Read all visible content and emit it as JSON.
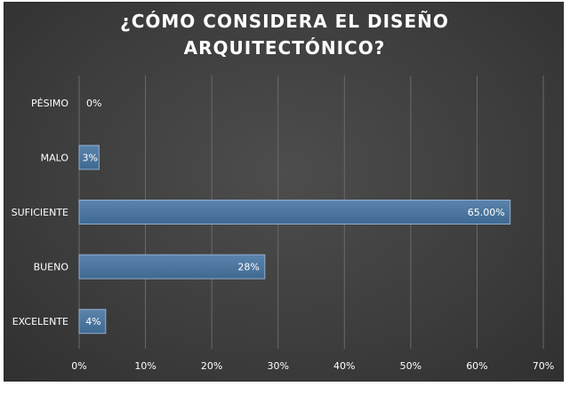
{
  "chart_data": {
    "type": "bar",
    "orientation": "horizontal",
    "title": "¿CÓMO CONSIDERA EL DISEÑO\nARQUITECTÓNICO?",
    "categories": [
      "PÉSIMO",
      "MALO",
      "SUFICIENTE",
      "BUENO",
      "EXCELENTE"
    ],
    "values": [
      0,
      3,
      65,
      28,
      4
    ],
    "value_labels": [
      "0%",
      "3%",
      "65.00%",
      "28%",
      "4%"
    ],
    "xlim": [
      0,
      70
    ],
    "x_ticks": [
      0,
      10,
      20,
      30,
      40,
      50,
      60,
      70
    ],
    "x_tick_labels": [
      "0%",
      "10%",
      "20%",
      "30%",
      "40%",
      "50%",
      "60%",
      "70%"
    ],
    "xlabel": "",
    "ylabel": "",
    "grid": "vertical",
    "legend": "none",
    "colors": {
      "bar_fill": "#3f6990",
      "bar_highlight": "#5b84ad",
      "bar_stroke": "#8fb0d0",
      "gridline": "#6a6a6a",
      "text": "#ffffff"
    }
  }
}
